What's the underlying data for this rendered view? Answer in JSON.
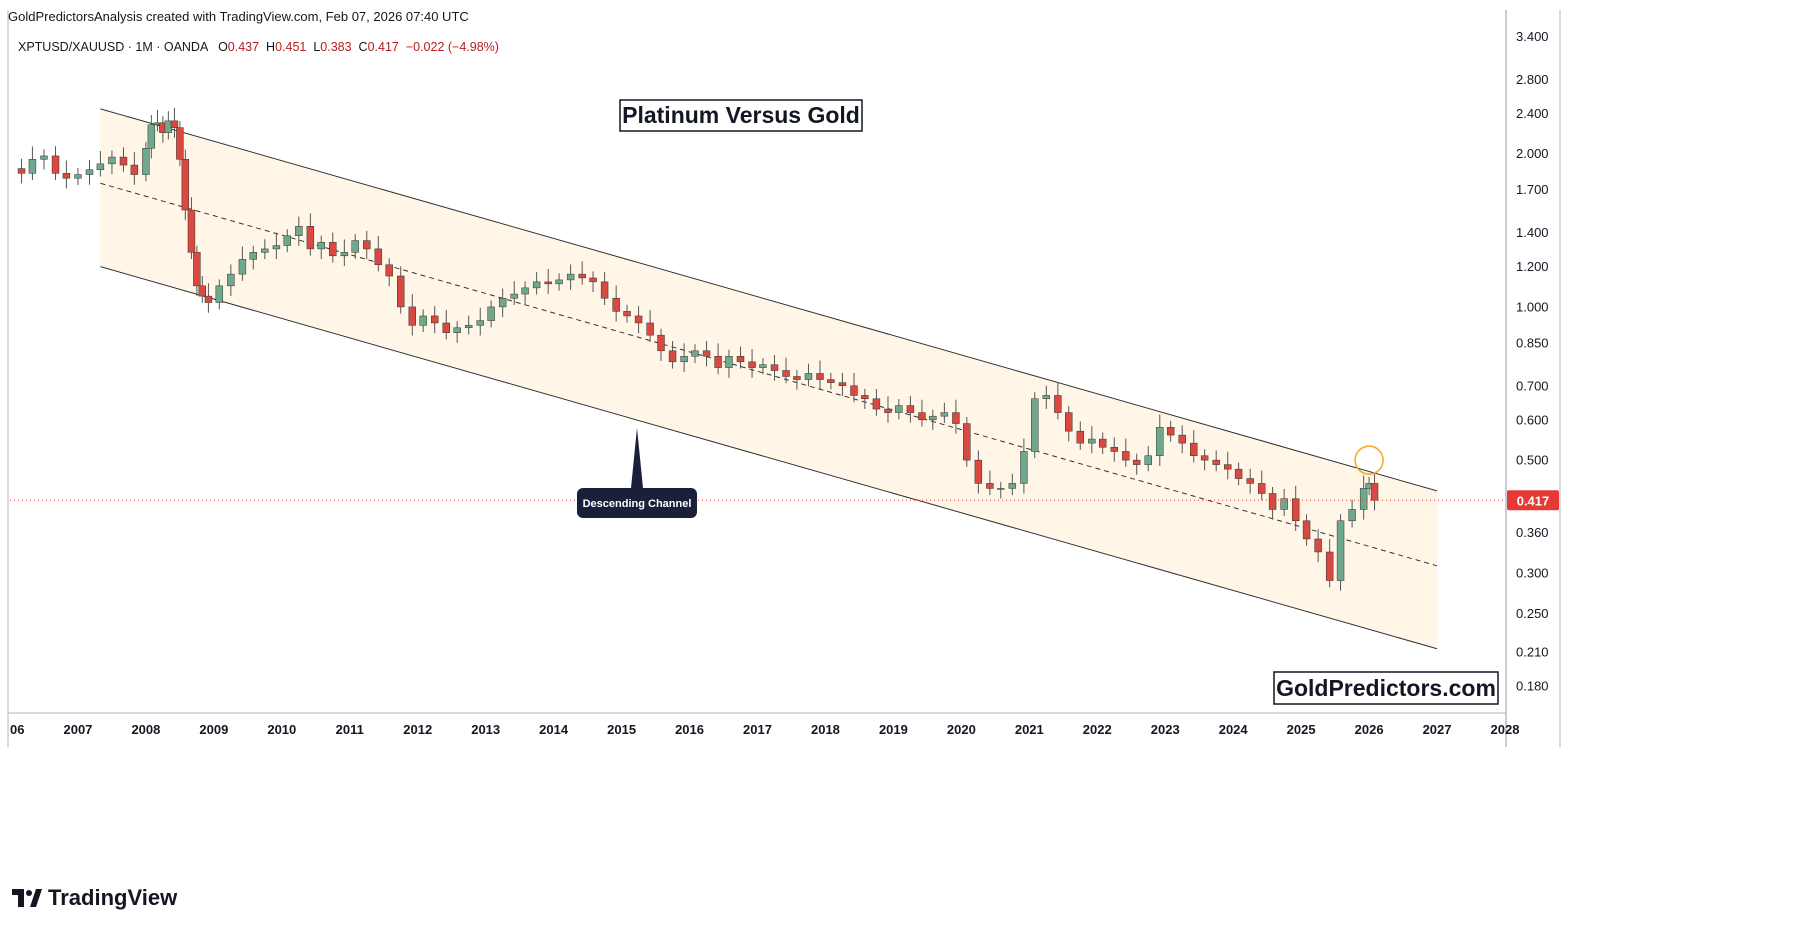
{
  "header": {
    "credit": "GoldPredictorsAnalysis created with TradingView.com, Feb 07, 2026 07:40 UTC"
  },
  "legend": {
    "symbol": "XPTUSD/XAUUSD · 1M · OANDA",
    "open_label": "O",
    "open": "0.437",
    "high_label": "H",
    "high": "0.451",
    "low_label": "L",
    "low": "0.383",
    "close_label": "C",
    "close": "0.417",
    "change": "−0.022 (−4.98%)"
  },
  "footer": {
    "brand": "TradingView",
    "logo_icon": "tradingview-logo-icon"
  },
  "colors": {
    "up": "#26a69a",
    "down": "#ef5350",
    "up_fill": "#6fa88c",
    "down_fill": "#d9493f",
    "wick": "#555555",
    "channel_fill": "#fff6e8",
    "channel_line": "#333333",
    "price_line": "#e53935",
    "price_label_bg": "#e53935",
    "highlight_circle": "#f5a623"
  },
  "chart_data": {
    "type": "candlestick",
    "title": "Platinum Versus Gold",
    "watermark": "GoldPredictors.com",
    "annotation": "Descending Channel",
    "y_scale": "log",
    "ylim": [
      0.16,
      3.5
    ],
    "xlim": [
      2006.0,
      2028.0
    ],
    "x_ticks": [
      "06",
      "2007",
      "2008",
      "2009",
      "2010",
      "2011",
      "2012",
      "2013",
      "2014",
      "2015",
      "2016",
      "2017",
      "2018",
      "2019",
      "2020",
      "2021",
      "2022",
      "2023",
      "2024",
      "2025",
      "2026",
      "2027",
      "2028"
    ],
    "y_ticks": [
      "3.400",
      "2.800",
      "2.400",
      "2.000",
      "1.700",
      "1.400",
      "1.200",
      "1.000",
      "0.850",
      "0.700",
      "0.600",
      "0.500",
      "0.360",
      "0.300",
      "0.250",
      "0.210",
      "0.180"
    ],
    "last_price": "0.417",
    "channel": {
      "upper": {
        "x": [
          2007.33,
          2027.0
        ],
        "y": [
          2.45,
          0.435
        ]
      },
      "middle": {
        "x": [
          2007.33,
          2027.0
        ],
        "y": [
          1.75,
          0.31
        ]
      },
      "lower": {
        "x": [
          2007.33,
          2027.0
        ],
        "y": [
          1.2,
          0.213
        ]
      }
    },
    "highlight": {
      "x": 2026.0,
      "y": 0.5
    },
    "close_series": [
      [
        2006.0,
        1.87
      ],
      [
        2006.17,
        1.83
      ],
      [
        2006.33,
        1.95
      ],
      [
        2006.5,
        1.98
      ],
      [
        2006.67,
        1.83
      ],
      [
        2006.83,
        1.79
      ],
      [
        2007.0,
        1.82
      ],
      [
        2007.17,
        1.86
      ],
      [
        2007.33,
        1.91
      ],
      [
        2007.5,
        1.97
      ],
      [
        2007.67,
        1.9
      ],
      [
        2007.83,
        1.82
      ],
      [
        2008.0,
        2.05
      ],
      [
        2008.08,
        2.28
      ],
      [
        2008.17,
        2.3
      ],
      [
        2008.25,
        2.2
      ],
      [
        2008.33,
        2.32
      ],
      [
        2008.42,
        2.25
      ],
      [
        2008.5,
        1.95
      ],
      [
        2008.58,
        1.55
      ],
      [
        2008.67,
        1.28
      ],
      [
        2008.75,
        1.1
      ],
      [
        2008.83,
        1.05
      ],
      [
        2008.92,
        1.02
      ],
      [
        2009.08,
        1.1
      ],
      [
        2009.25,
        1.16
      ],
      [
        2009.42,
        1.24
      ],
      [
        2009.58,
        1.28
      ],
      [
        2009.75,
        1.3
      ],
      [
        2009.92,
        1.32
      ],
      [
        2010.08,
        1.38
      ],
      [
        2010.25,
        1.44
      ],
      [
        2010.42,
        1.3
      ],
      [
        2010.58,
        1.34
      ],
      [
        2010.75,
        1.26
      ],
      [
        2010.92,
        1.28
      ],
      [
        2011.08,
        1.35
      ],
      [
        2011.25,
        1.3
      ],
      [
        2011.42,
        1.21
      ],
      [
        2011.58,
        1.15
      ],
      [
        2011.75,
        1.0
      ],
      [
        2011.92,
        0.92
      ],
      [
        2012.08,
        0.96
      ],
      [
        2012.25,
        0.93
      ],
      [
        2012.42,
        0.89
      ],
      [
        2012.58,
        0.91
      ],
      [
        2012.75,
        0.92
      ],
      [
        2012.92,
        0.94
      ],
      [
        2013.08,
        1.0
      ],
      [
        2013.25,
        1.04
      ],
      [
        2013.42,
        1.06
      ],
      [
        2013.58,
        1.09
      ],
      [
        2013.75,
        1.12
      ],
      [
        2013.92,
        1.11
      ],
      [
        2014.08,
        1.13
      ],
      [
        2014.25,
        1.16
      ],
      [
        2014.42,
        1.14
      ],
      [
        2014.58,
        1.12
      ],
      [
        2014.75,
        1.04
      ],
      [
        2014.92,
        0.98
      ],
      [
        2015.08,
        0.96
      ],
      [
        2015.25,
        0.93
      ],
      [
        2015.42,
        0.88
      ],
      [
        2015.58,
        0.82
      ],
      [
        2015.75,
        0.78
      ],
      [
        2015.92,
        0.8
      ],
      [
        2016.08,
        0.82
      ],
      [
        2016.25,
        0.8
      ],
      [
        2016.42,
        0.76
      ],
      [
        2016.58,
        0.8
      ],
      [
        2016.75,
        0.78
      ],
      [
        2016.92,
        0.76
      ],
      [
        2017.08,
        0.77
      ],
      [
        2017.25,
        0.75
      ],
      [
        2017.42,
        0.73
      ],
      [
        2017.58,
        0.72
      ],
      [
        2017.75,
        0.74
      ],
      [
        2017.92,
        0.72
      ],
      [
        2018.08,
        0.71
      ],
      [
        2018.25,
        0.7
      ],
      [
        2018.42,
        0.67
      ],
      [
        2018.58,
        0.66
      ],
      [
        2018.75,
        0.63
      ],
      [
        2018.92,
        0.62
      ],
      [
        2019.08,
        0.64
      ],
      [
        2019.25,
        0.62
      ],
      [
        2019.42,
        0.6
      ],
      [
        2019.58,
        0.61
      ],
      [
        2019.75,
        0.62
      ],
      [
        2019.92,
        0.59
      ],
      [
        2020.08,
        0.5
      ],
      [
        2020.25,
        0.45
      ],
      [
        2020.42,
        0.44
      ],
      [
        2020.58,
        0.44
      ],
      [
        2020.75,
        0.45
      ],
      [
        2020.92,
        0.52
      ],
      [
        2021.08,
        0.66
      ],
      [
        2021.25,
        0.67
      ],
      [
        2021.42,
        0.62
      ],
      [
        2021.58,
        0.57
      ],
      [
        2021.75,
        0.54
      ],
      [
        2021.92,
        0.55
      ],
      [
        2022.08,
        0.53
      ],
      [
        2022.25,
        0.52
      ],
      [
        2022.42,
        0.5
      ],
      [
        2022.58,
        0.49
      ],
      [
        2022.75,
        0.51
      ],
      [
        2022.92,
        0.58
      ],
      [
        2023.08,
        0.56
      ],
      [
        2023.25,
        0.54
      ],
      [
        2023.42,
        0.51
      ],
      [
        2023.58,
        0.5
      ],
      [
        2023.75,
        0.49
      ],
      [
        2023.92,
        0.48
      ],
      [
        2024.08,
        0.46
      ],
      [
        2024.25,
        0.45
      ],
      [
        2024.42,
        0.43
      ],
      [
        2024.58,
        0.4
      ],
      [
        2024.75,
        0.42
      ],
      [
        2024.92,
        0.38
      ],
      [
        2025.08,
        0.35
      ],
      [
        2025.25,
        0.33
      ],
      [
        2025.42,
        0.29
      ],
      [
        2025.58,
        0.38
      ],
      [
        2025.75,
        0.4
      ],
      [
        2025.92,
        0.44
      ],
      [
        2026.0,
        0.45
      ],
      [
        2026.08,
        0.417
      ]
    ]
  }
}
